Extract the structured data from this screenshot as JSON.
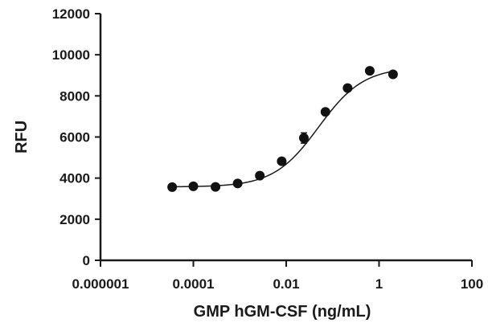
{
  "chart_data": {
    "type": "scatter",
    "title": "",
    "xlabel": "GMP hGM-CSF (ng/mL)",
    "ylabel": "RFU",
    "x_scale": "log",
    "xlim": [
      1e-06,
      100
    ],
    "ylim": [
      0,
      12000
    ],
    "x_ticks": [
      1e-06,
      0.0001,
      0.01,
      1,
      100
    ],
    "x_tick_labels": [
      "0.000001",
      "0.0001",
      "0.01",
      "1",
      "100"
    ],
    "y_ticks": [
      0,
      2000,
      4000,
      6000,
      8000,
      10000,
      12000
    ],
    "y_tick_labels": [
      "0",
      "2000",
      "4000",
      "6000",
      "8000",
      "10000",
      "12000"
    ],
    "grid": false,
    "series": [
      {
        "points": [
          {
            "x": 3.5e-05,
            "y": 3560
          },
          {
            "x": 0.0001,
            "y": 3600
          },
          {
            "x": 0.0003,
            "y": 3570
          },
          {
            "x": 0.0009,
            "y": 3740
          },
          {
            "x": 0.0027,
            "y": 4120
          },
          {
            "x": 0.008,
            "y": 4820
          },
          {
            "x": 0.024,
            "y": 5950,
            "err": 250
          },
          {
            "x": 0.07,
            "y": 7220
          },
          {
            "x": 0.21,
            "y": 8380
          },
          {
            "x": 0.63,
            "y": 9220
          },
          {
            "x": 2.0,
            "y": 9050
          }
        ]
      }
    ],
    "fit": {
      "model": "4PL",
      "bottom": 3570,
      "top": 9400,
      "ec50": 0.05,
      "hill": 0.9,
      "x_range": [
        3.5e-05,
        2.0
      ]
    }
  }
}
